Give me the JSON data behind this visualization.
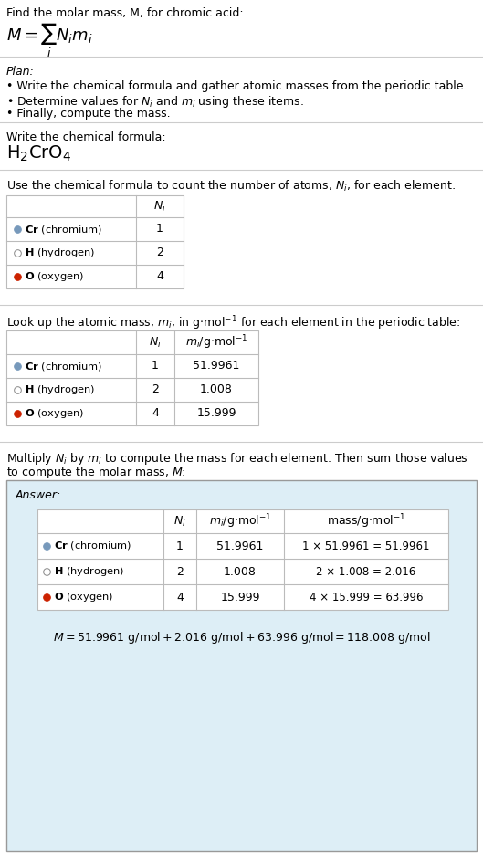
{
  "bg_color": "#ffffff",
  "answer_box_color": "#ddeef6",
  "table_border_color": "#bbbbbb",
  "answer_border_color": "#999999",
  "text_color": "#000000",
  "dot_colors": [
    "#7799bb",
    "#ffffff",
    "#cc2200"
  ],
  "dot_edge_colors": [
    "#7799bb",
    "#888888",
    "#cc2200"
  ],
  "elements": [
    "Cr (chromium)",
    "H (hydrogen)",
    "O (oxygen)"
  ],
  "element_symbols": [
    "Cr",
    "H",
    "O"
  ],
  "N_i": [
    1,
    2,
    4
  ],
  "m_i": [
    "51.9961",
    "1.008",
    "15.999"
  ],
  "mass_exprs": [
    "1 × 51.9961 = 51.9961",
    "2 × 1.008 = 2.016",
    "4 × 15.999 = 63.996"
  ]
}
